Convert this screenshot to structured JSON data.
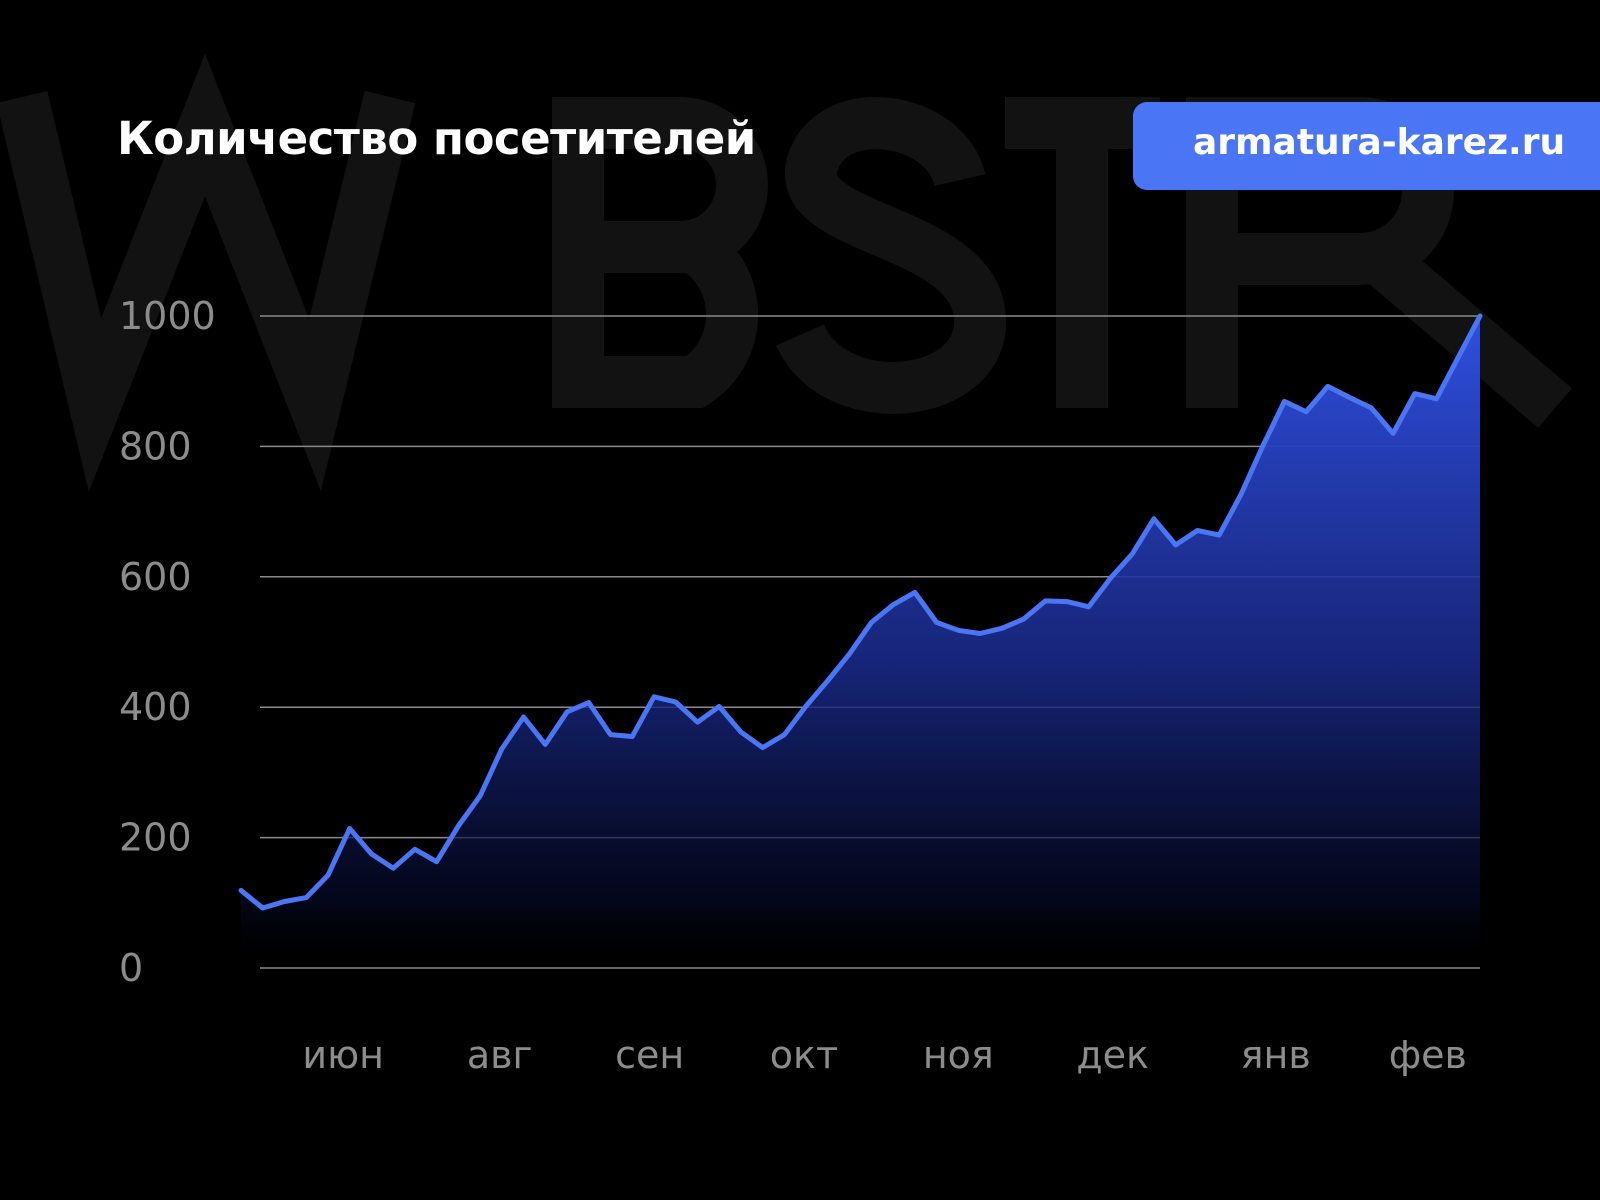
{
  "watermark": "WBSTR",
  "title": "Количество посетителей",
  "badge": {
    "label": "armatura-karez.ru",
    "color": "#4a76f5"
  },
  "chart_data": {
    "type": "area",
    "title": "Количество посетителей",
    "xlabel": "",
    "ylabel": "",
    "ylim": [
      0,
      1000
    ],
    "yticks": [
      0,
      200,
      400,
      600,
      800,
      1000
    ],
    "grid": true,
    "line_color": "#4a76f5",
    "xticks": [
      {
        "label": "июн",
        "at": 4.7
      },
      {
        "label": "авг",
        "at": 11.9
      },
      {
        "label": "сен",
        "at": 18.8
      },
      {
        "label": "окт",
        "at": 25.9
      },
      {
        "label": "ноя",
        "at": 33.0
      },
      {
        "label": "дек",
        "at": 40.1
      },
      {
        "label": "янв",
        "at": 47.6
      },
      {
        "label": "фев",
        "at": 54.6
      }
    ],
    "values": [
      119,
      92,
      102,
      108,
      142,
      214,
      175,
      153,
      182,
      163,
      218,
      264,
      336,
      385,
      343,
      393,
      407,
      358,
      355,
      416,
      408,
      377,
      401,
      362,
      338,
      358,
      402,
      441,
      482,
      530,
      557,
      576,
      530,
      518,
      513,
      521,
      535,
      563,
      562,
      554,
      598,
      635,
      689,
      649,
      671,
      664,
      726,
      800,
      869,
      853,
      892,
      875,
      859,
      820,
      881,
      873,
      937,
      1000
    ]
  }
}
